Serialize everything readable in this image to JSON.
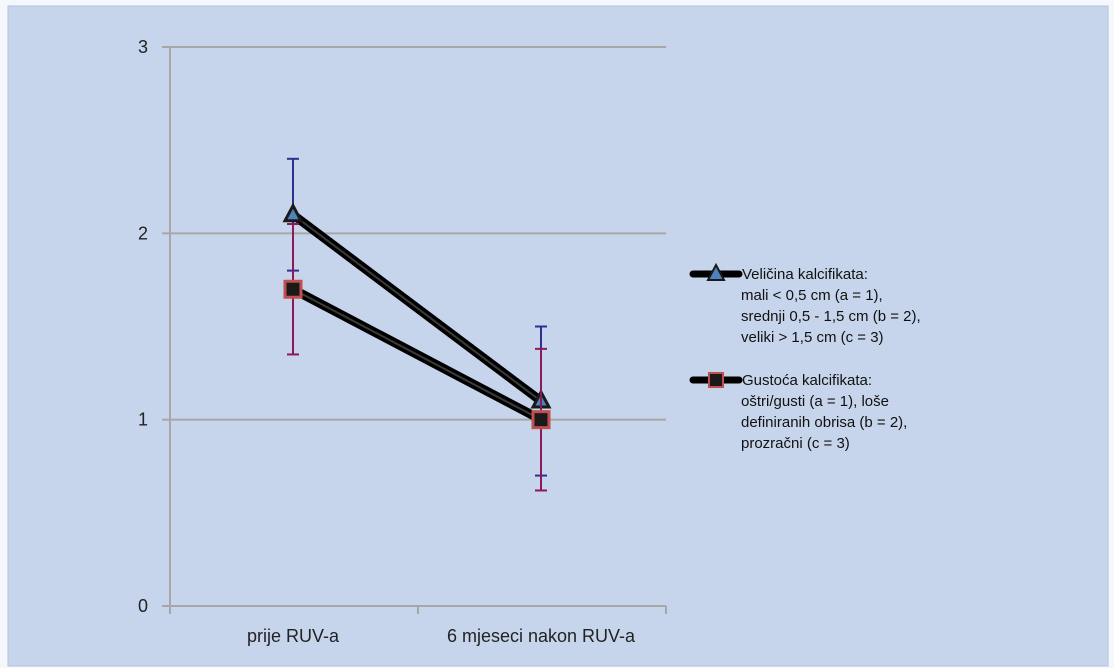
{
  "chart_data": {
    "type": "line",
    "title": "",
    "xlabel": "",
    "ylabel": "",
    "categories": [
      "prije RUV-a",
      "6 mjeseci nakon RUV-a"
    ],
    "ylim": [
      0,
      3
    ],
    "yticks": [
      "0",
      "1",
      "2",
      "3"
    ],
    "grid": true,
    "legend_position": "right",
    "series": [
      {
        "name_lines": [
          "Veličina kalcifikata:",
          "mali < 0,5 cm (a = 1),",
          "srednji 0,5 - 1,5 cm (b = 2),",
          "veliki > 1,5 cm (c = 3)"
        ],
        "marker": "triangle",
        "values": [
          2.1,
          1.1
        ],
        "error_low": [
          1.8,
          0.7
        ],
        "error_high": [
          2.4,
          1.5
        ],
        "marker_color": "#4f81bd",
        "error_color": "#2f2f8f"
      },
      {
        "name_lines": [
          "Gustoća kalcifikata:",
          "oštri/gusti (a = 1), loše",
          "definiranih obrisa (b = 2),",
          "prozračni (c = 3)"
        ],
        "marker": "square",
        "values": [
          1.7,
          1.0
        ],
        "error_low": [
          1.35,
          0.62
        ],
        "error_high": [
          2.05,
          1.38
        ],
        "marker_color": "#c0504d",
        "error_color": "#8b1a5a"
      }
    ],
    "colors": {
      "background": "#c7d5ec",
      "line": "#000000",
      "grid": "#a7a7a7"
    }
  }
}
